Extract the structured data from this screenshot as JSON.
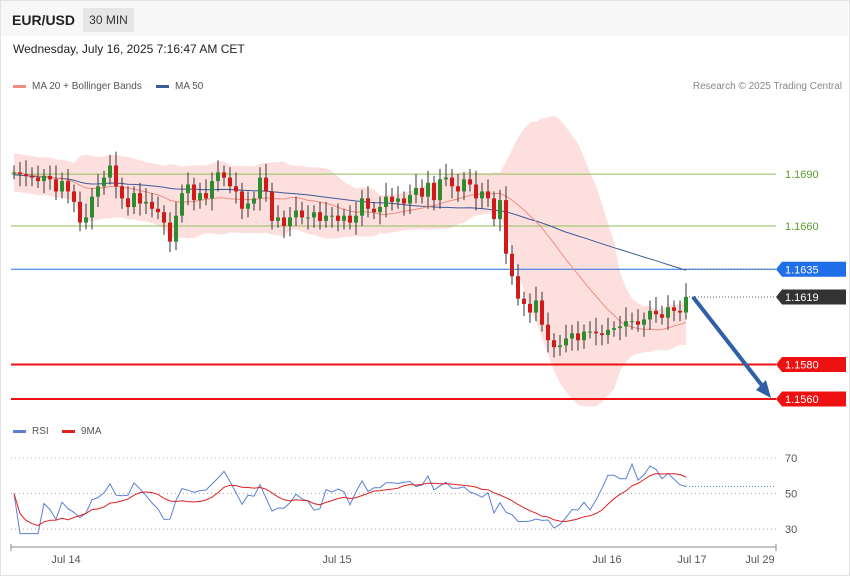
{
  "header": {
    "symbol": "EUR/USD",
    "timeframe": "30 MIN"
  },
  "datetime": "Wednesday, July 16, 2025 7:16:47 AM CET",
  "legend": {
    "ma20": {
      "label": "MA 20 + Bollinger Bands",
      "color": "#f28b82"
    },
    "ma50": {
      "label": "MA 50",
      "color": "#3d5a98"
    },
    "rsi": {
      "label": "RSI",
      "color": "#5b7fd6"
    },
    "ma9": {
      "label": "9MA",
      "color": "#e02020"
    }
  },
  "credit": "Research © 2025 Trading Central",
  "chart_data": [
    {
      "type": "candlestick",
      "ylim": [
        1.1545,
        1.1745
      ],
      "x_labels": [
        "Jul 14",
        "Jul 15",
        "Jul 16",
        "Jul 17",
        "Jul 29"
      ],
      "levels": [
        {
          "value": 1.169,
          "label": "1.1690",
          "kind": "resistance",
          "color": "#8fbf5a"
        },
        {
          "value": 1.166,
          "label": "1.1660",
          "kind": "resistance",
          "color": "#8fbf5a"
        },
        {
          "value": 1.1635,
          "label": "1.1635",
          "kind": "pivot",
          "color": "#1f6fe8"
        },
        {
          "value": 1.1619,
          "label": "1.1619",
          "kind": "last-price",
          "color": "#333333"
        },
        {
          "value": 1.158,
          "label": "1.1580",
          "kind": "target",
          "color": "#ee1111"
        },
        {
          "value": 1.156,
          "label": "1.1560",
          "kind": "target",
          "color": "#ee1111"
        }
      ],
      "projection": {
        "from": 1.1619,
        "to": 1.156,
        "color": "#2f5fa6"
      },
      "close": [
        1.1691,
        1.169,
        1.1689,
        1.1688,
        1.1686,
        1.1689,
        1.1687,
        1.168,
        1.1686,
        1.168,
        1.1674,
        1.1662,
        1.1665,
        1.1677,
        1.1683,
        1.1688,
        1.1695,
        1.1683,
        1.1676,
        1.1671,
        1.1679,
        1.1673,
        1.1674,
        1.167,
        1.1668,
        1.1662,
        1.1651,
        1.1666,
        1.1679,
        1.1684,
        1.1675,
        1.1679,
        1.1676,
        1.1686,
        1.1691,
        1.1688,
        1.1683,
        1.168,
        1.167,
        1.1673,
        1.1676,
        1.1688,
        1.168,
        1.1663,
        1.1665,
        1.166,
        1.1665,
        1.1669,
        1.1665,
        1.1665,
        1.1668,
        1.1663,
        1.1666,
        1.1666,
        1.1663,
        1.1666,
        1.1662,
        1.1666,
        1.1676,
        1.167,
        1.1668,
        1.1671,
        1.1677,
        1.1674,
        1.1676,
        1.1673,
        1.1678,
        1.1682,
        1.1677,
        1.1685,
        1.1675,
        1.1687,
        1.1688,
        1.1683,
        1.168,
        1.1687,
        1.1684,
        1.1676,
        1.168,
        1.1676,
        1.1664,
        1.1675,
        1.1644,
        1.1631,
        1.1618,
        1.1615,
        1.161,
        1.1617,
        1.1603,
        1.1594,
        1.159,
        1.1591,
        1.1595,
        1.1598,
        1.1594,
        1.1599,
        1.1599,
        1.1598,
        1.1597,
        1.16,
        1.1601,
        1.1602,
        1.1605,
        1.1605,
        1.1603,
        1.1606,
        1.1611,
        1.1609,
        1.1607,
        1.1613,
        1.1611,
        1.161,
        1.1619
      ],
      "bands": {
        "ma20_start": 1.1683,
        "ma20_end": 1.1606,
        "ma50_start": 1.1688,
        "ma50_end": 1.1635
      }
    },
    {
      "type": "line",
      "name": "RSI",
      "ylim": [
        20,
        80
      ],
      "ticks": [
        70,
        50,
        30
      ],
      "last_value": 54
    }
  ]
}
